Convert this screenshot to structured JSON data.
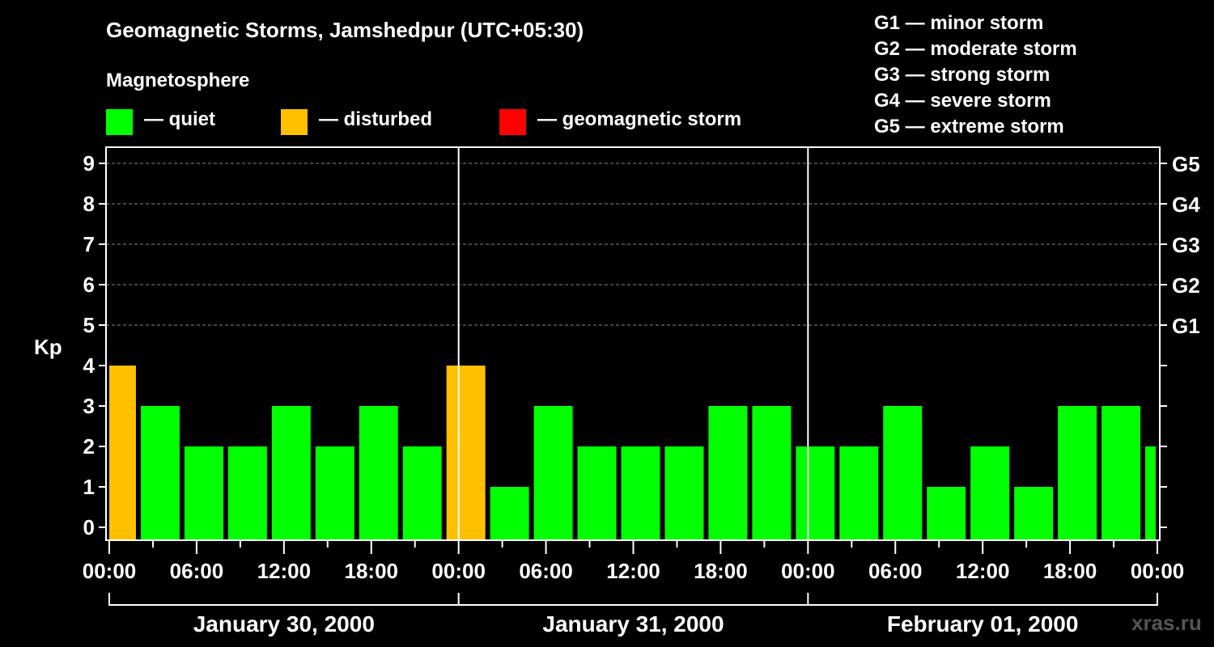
{
  "title": "Geomagnetic Storms, Jamshedpur (UTC+05:30)",
  "legend": {
    "heading": "Magnetosphere",
    "items": [
      {
        "label": "— quiet",
        "color": "#00ff00"
      },
      {
        "label": "— disturbed",
        "color": "#ffc000"
      },
      {
        "label": "— geomagnetic storm",
        "color": "#ff0000"
      }
    ]
  },
  "g_scale": [
    "G1 — minor storm",
    "G2 — moderate storm",
    "G3 — strong storm",
    "G4 — severe storm",
    "G5 — extreme storm"
  ],
  "watermark": "xras.ru",
  "chart_data": {
    "type": "bar",
    "title": "Geomagnetic Storms, Jamshedpur (UTC+05:30)",
    "ylabel": "Kp",
    "ylim": [
      0,
      9
    ],
    "yticks": [
      "0",
      "1",
      "2",
      "3",
      "4",
      "5",
      "6",
      "7",
      "8",
      "9"
    ],
    "right_ticks": [
      {
        "kp": 5,
        "label": "G1"
      },
      {
        "kp": 6,
        "label": "G2"
      },
      {
        "kp": 7,
        "label": "G3"
      },
      {
        "kp": 8,
        "label": "G4"
      },
      {
        "kp": 9,
        "label": "G5"
      }
    ],
    "xlim_hours": [
      0,
      72
    ],
    "xtick_labels": [
      "00:00",
      "06:00",
      "12:00",
      "18:00",
      "00:00",
      "06:00",
      "12:00",
      "18:00",
      "00:00",
      "06:00",
      "12:00",
      "18:00",
      "00:00"
    ],
    "days": [
      "January 30, 2000",
      "January 31, 2000",
      "February 01, 2000"
    ],
    "bar_interval_hours": 3,
    "first_bar_start_hour": -1,
    "values": [
      4,
      3,
      2,
      2,
      3,
      2,
      3,
      2,
      4,
      1,
      3,
      2,
      2,
      2,
      3,
      3,
      2,
      2,
      3,
      1,
      2,
      1,
      3,
      3,
      2
    ],
    "grid": "dashed at Kp 5-9",
    "colors": {
      "quiet": "#00ff00",
      "disturbed": "#ffc000",
      "storm": "#ff0000"
    }
  }
}
